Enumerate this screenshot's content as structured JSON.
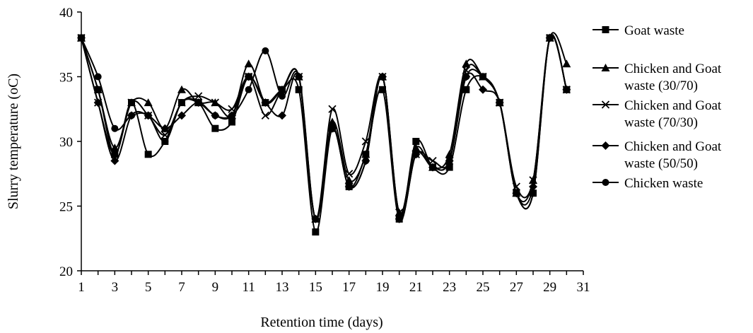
{
  "chart_data": {
    "type": "line",
    "xlabel": "Retention time (days)",
    "ylabel": "Slurry temperature (oC)",
    "xlim": [
      1,
      31
    ],
    "ylim": [
      20,
      40
    ],
    "x_ticks": [
      1,
      3,
      5,
      7,
      9,
      11,
      13,
      15,
      17,
      19,
      21,
      23,
      25,
      27,
      29,
      31
    ],
    "y_ticks": [
      20,
      25,
      30,
      35,
      40
    ],
    "grid": false,
    "legend_position": "right",
    "line_color": "#000000",
    "x": [
      1,
      2,
      3,
      4,
      5,
      6,
      7,
      8,
      9,
      10,
      11,
      12,
      13,
      14,
      15,
      16,
      17,
      18,
      19,
      20,
      21,
      22,
      23,
      24,
      25,
      26,
      27,
      28,
      29,
      30
    ],
    "series": [
      {
        "name": "Goat waste",
        "name_lines": [
          "Goat waste"
        ],
        "marker": "square",
        "values": [
          38,
          34,
          29,
          33,
          29,
          30,
          33,
          33,
          31,
          31.5,
          35,
          33,
          34,
          34,
          23,
          31,
          26.5,
          29,
          34,
          24,
          30,
          28,
          28,
          34,
          35,
          33,
          26,
          26,
          38,
          34
        ]
      },
      {
        "name": "Chicken and Goat waste (30/70)",
        "name_lines": [
          "Chicken and Goat",
          "waste (30/70)"
        ],
        "marker": "triangle",
        "values": [
          38,
          34,
          29.5,
          33,
          33,
          31,
          34,
          33,
          33,
          32,
          36,
          33,
          34,
          35,
          24,
          31.5,
          27,
          29,
          35,
          24.5,
          29.5,
          28,
          29,
          36,
          35,
          33,
          26,
          27,
          38,
          36
        ]
      },
      {
        "name": "Chicken and Goat waste (70/30)",
        "name_lines": [
          "Chicken and Goat",
          "waste (70/30)"
        ],
        "marker": "x",
        "values": [
          38,
          33,
          29,
          33,
          32,
          30.5,
          33,
          33.5,
          33,
          32.5,
          35,
          32,
          34,
          35,
          24,
          32.5,
          27.5,
          30,
          35,
          24.5,
          29,
          28.5,
          28.5,
          35.5,
          35,
          33,
          26.5,
          27,
          38,
          34
        ]
      },
      {
        "name": "Chicken and Goat waste (50/50)",
        "name_lines": [
          "Chicken and Goat",
          "waste (50/50)"
        ],
        "marker": "diamond",
        "values": [
          38,
          33,
          28.5,
          32,
          32,
          31,
          32,
          33,
          32,
          32,
          35,
          33,
          32,
          35,
          24,
          31,
          26.5,
          28.5,
          35,
          24,
          29,
          28,
          28.5,
          35,
          34,
          33,
          26,
          26.5,
          38,
          34
        ]
      },
      {
        "name": "Chicken waste",
        "name_lines": [
          "Chicken waste"
        ],
        "marker": "circle",
        "values": [
          38,
          35,
          31,
          32,
          32,
          30,
          33,
          33,
          32,
          32,
          34,
          37,
          33.5,
          35,
          24,
          31,
          26.5,
          28.5,
          35,
          24,
          29,
          28,
          28.5,
          35,
          35,
          33,
          26,
          26,
          38,
          34
        ]
      }
    ]
  }
}
